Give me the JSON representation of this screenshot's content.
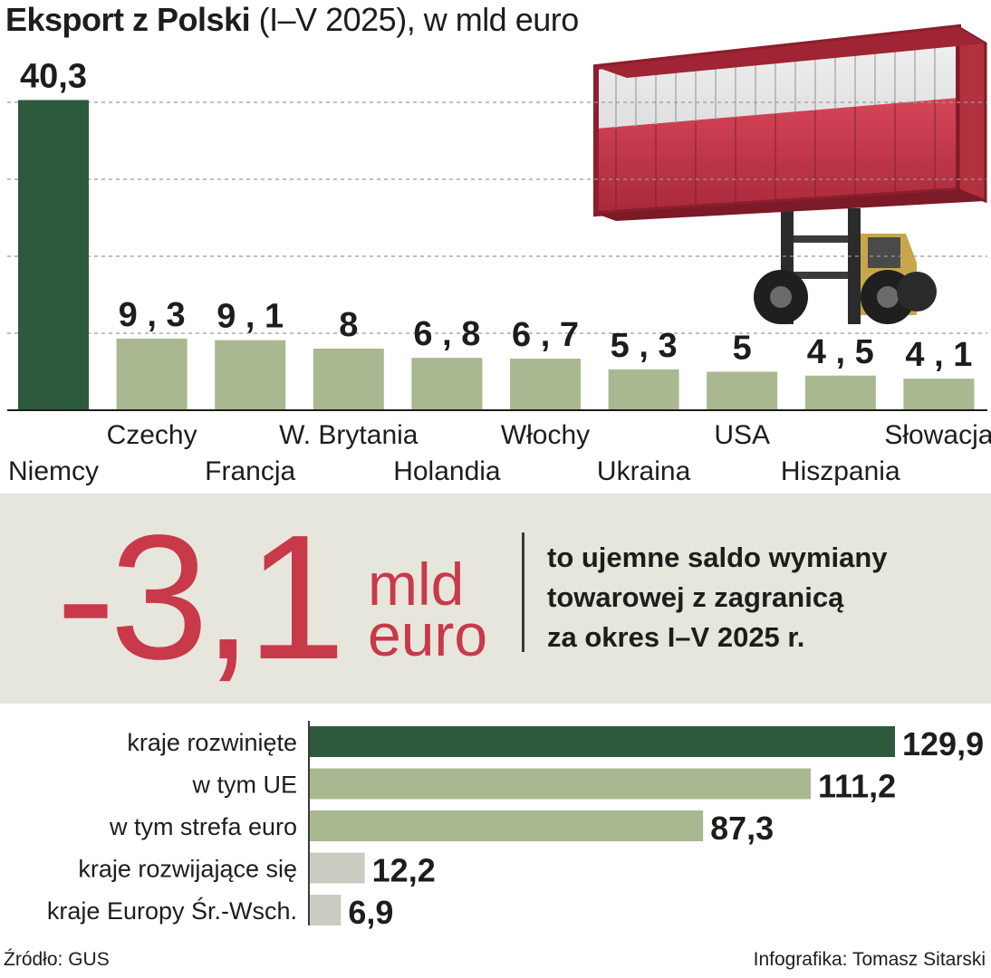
{
  "title": {
    "bold": "Eksport z Polski",
    "rest": " (I–V 2025), w mld euro"
  },
  "colors": {
    "dark_green": "#2d5a3d",
    "light_green": "#a9b890",
    "pale": "#c9cdc1",
    "red": "#c8394a",
    "band": "#e6e6dc"
  },
  "illustration": {
    "icon": "shipping-container-on-forklift-icon",
    "flag_colors": [
      "#ffffff",
      "#c8394a"
    ]
  },
  "chart_data": [
    {
      "type": "bar",
      "categories": [
        "Niemcy",
        "Czechy",
        "Francja",
        "W. Brytania",
        "Holandia",
        "Włochy",
        "Ukraina",
        "USA",
        "Hiszpania",
        "Słowacja"
      ],
      "values": [
        40.3,
        9.3,
        9.1,
        8,
        6.8,
        6.7,
        5.3,
        5,
        4.5,
        4.1
      ],
      "value_labels": [
        "40,3",
        "9,3",
        "9,1",
        "8",
        "6,8",
        "6,7",
        "5,3",
        "5",
        "4,5",
        "4,1"
      ],
      "highlight_index": 0,
      "ylim": [
        0,
        40
      ],
      "grid_lines": [
        10,
        20,
        30,
        40
      ],
      "y_tick_labels_shown": false
    },
    {
      "type": "bar",
      "orientation": "horizontal",
      "categories": [
        "kraje rozwinięte",
        "w tym UE",
        "w tym strefa euro",
        "kraje rozwijające się",
        "kraje Europy Śr.-Wsch."
      ],
      "values": [
        129.9,
        111.2,
        87.3,
        12.2,
        6.9
      ],
      "value_labels": [
        "129,9",
        "111,2",
        "87,3",
        "12,2",
        "6,9"
      ]
    }
  ],
  "highlight": {
    "value": "-3,1",
    "unit_line1": "mld",
    "unit_line2": "euro",
    "note_lines": [
      "to ujemne saldo wymiany",
      "towarowej z zagranicą",
      "za okres I–V 2025 r."
    ]
  },
  "footer": {
    "source": "Źródło: GUS",
    "credit": "Infografika: Tomasz Sitarski"
  }
}
